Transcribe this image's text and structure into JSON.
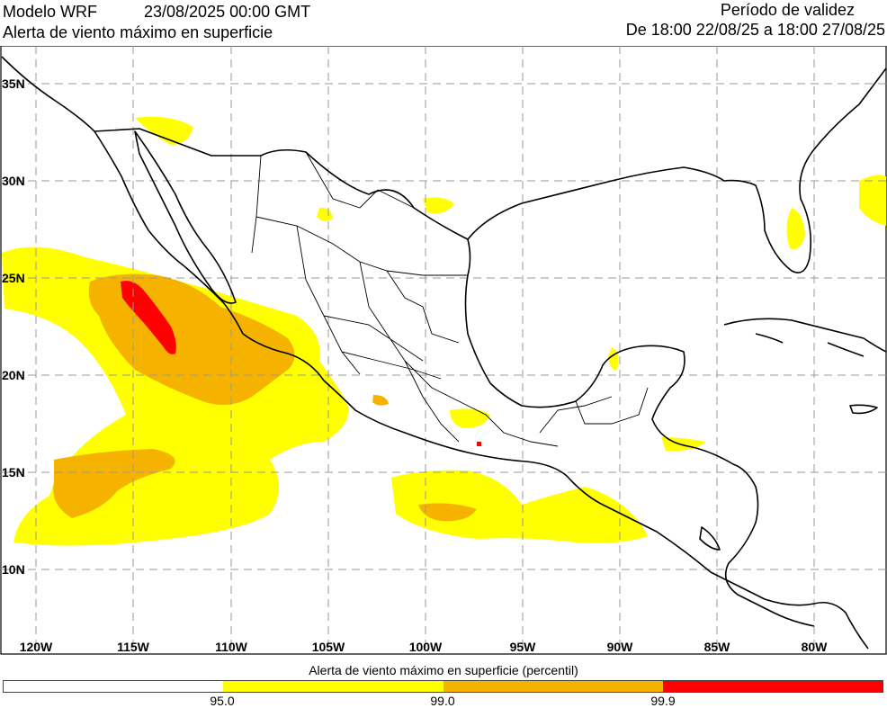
{
  "header": {
    "model": "Modelo WRF",
    "run_time": "23/08/2025 00:00 GMT",
    "product": "Alerta de viento máximo en superficie",
    "validity_label": "Período de validez",
    "validity_range": "De 18:00 22/08/25 a 18:00 27/08/25"
  },
  "map": {
    "lon_labels": [
      "120W",
      "115W",
      "110W",
      "105W",
      "100W",
      "95W",
      "90W",
      "85W",
      "80W"
    ],
    "lat_labels": [
      "35N",
      "30N",
      "25N",
      "20N",
      "15N",
      "10N"
    ],
    "grid": "dashed",
    "colors": {
      "background": "#ffffff",
      "above_95": "#ffff00",
      "above_99": "#f5b300",
      "above_99_9": "#ff0000",
      "coastline": "#000000"
    }
  },
  "colorbar": {
    "title": "Alerta de viento máximo en superficie (percentil)",
    "segments": [
      "#ffffff",
      "#ffff00",
      "#f5b300",
      "#ff0000"
    ],
    "ticks": [
      "95.0",
      "99.0",
      "99.9"
    ]
  }
}
